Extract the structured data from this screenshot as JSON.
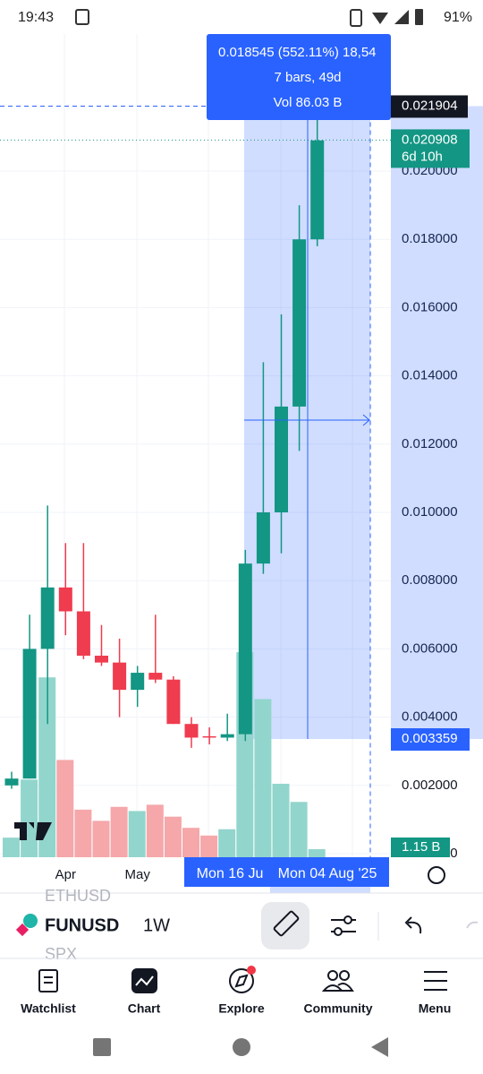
{
  "status_bar": {
    "time": "19:43",
    "battery": "91%"
  },
  "chart_data": {
    "type": "candlestick",
    "categories": [
      null,
      null,
      null,
      "Apr",
      null,
      null,
      null,
      "May",
      null,
      null,
      null,
      null,
      null,
      null,
      null,
      null,
      null,
      null
    ],
    "candles": [
      {
        "open": 0.002,
        "high": 0.0024,
        "low": 0.0019,
        "close": 0.0022
      },
      {
        "open": 0.0022,
        "high": 0.007,
        "low": 0.0022,
        "close": 0.006
      },
      {
        "open": 0.006,
        "high": 0.0102,
        "low": 0.0038,
        "close": 0.0078
      },
      {
        "open": 0.0078,
        "high": 0.0091,
        "low": 0.0064,
        "close": 0.0071
      },
      {
        "open": 0.0071,
        "high": 0.0091,
        "low": 0.0057,
        "close": 0.0058
      },
      {
        "open": 0.0058,
        "high": 0.0067,
        "low": 0.0055,
        "close": 0.0056
      },
      {
        "open": 0.0056,
        "high": 0.0063,
        "low": 0.004,
        "close": 0.0048
      },
      {
        "open": 0.0048,
        "high": 0.0055,
        "low": 0.0043,
        "close": 0.0053
      },
      {
        "open": 0.0053,
        "high": 0.007,
        "low": 0.005,
        "close": 0.0051
      },
      {
        "open": 0.0051,
        "high": 0.0052,
        "low": 0.0038,
        "close": 0.0038
      },
      {
        "open": 0.0038,
        "high": 0.004,
        "low": 0.0031,
        "close": 0.0034
      },
      {
        "open": 0.00344,
        "high": 0.0037,
        "low": 0.0032,
        "close": 0.0034
      },
      {
        "open": 0.0034,
        "high": 0.0041,
        "low": 0.0033,
        "close": 0.0035
      },
      {
        "open": 0.0035,
        "high": 0.0089,
        "low": 0.0033,
        "close": 0.0085
      },
      {
        "open": 0.0085,
        "high": 0.0144,
        "low": 0.0082,
        "close": 0.01
      },
      {
        "open": 0.01,
        "high": 0.0158,
        "low": 0.0088,
        "close": 0.0131
      },
      {
        "open": 0.0131,
        "high": 0.019,
        "low": 0.0118,
        "close": 0.018
      },
      {
        "open": 0.018,
        "high": 0.0217,
        "low": 0.0178,
        "close": 0.0209
      }
    ],
    "volumes": [
      2.8,
      11.1,
      25.7,
      13.9,
      6.8,
      5.2,
      7.2,
      6.6,
      7.5,
      5.8,
      4.2,
      3.1,
      4.0,
      29.3,
      22.6,
      10.5,
      7.9,
      1.15
    ],
    "last_volume_label": "1.15 B",
    "up_color": "#139683",
    "down_color": "#ef3c4e",
    "volume_up_color": "#92d5cc",
    "volume_down_color": "#f5a7aa",
    "ylim": [
      0,
      0.024
    ],
    "yticks": [
      {
        "value": 0,
        "label": "0.000000"
      },
      {
        "value": 0.002,
        "label": "0.002000"
      },
      {
        "value": 0.004,
        "label": "0.004000"
      },
      {
        "value": 0.006,
        "label": "0.006000"
      },
      {
        "value": 0.008,
        "label": "0.008000"
      },
      {
        "value": 0.01,
        "label": "0.010000"
      },
      {
        "value": 0.012,
        "label": "0.012000"
      },
      {
        "value": 0.014,
        "label": "0.014000"
      },
      {
        "value": 0.016,
        "label": "0.016000"
      },
      {
        "value": 0.018,
        "label": "0.018000"
      },
      {
        "value": 0.02,
        "label": "0.020000"
      }
    ],
    "grid": true,
    "measure": {
      "line1": "0.018545 (552.11%) 18,54",
      "line2": "7 bars, 49d",
      "line3": "Vol 86.03 B",
      "top": 0.021904,
      "bottom": 0.003359,
      "start_label": "Mon 16 Ju",
      "end_label": "Mon 04 Aug '25"
    },
    "last_price": {
      "value": 0.020908,
      "countdown": "6d 10h"
    }
  },
  "toolbar": {
    "prev_symbol": "ETHUSD",
    "symbol": "FUNUSD",
    "next_symbol": "SPX",
    "interval": "1W"
  },
  "nav": [
    "Watchlist",
    "Chart",
    "Explore",
    "Community",
    "Menu"
  ]
}
